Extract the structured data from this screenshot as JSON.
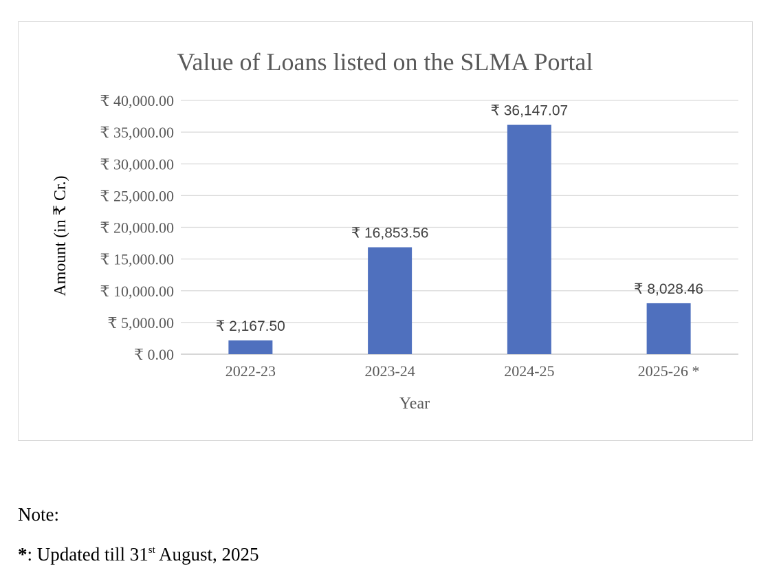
{
  "chart_data": {
    "type": "bar",
    "title": "Value of Loans listed on the SLMA Portal",
    "xlabel": "Year",
    "ylabel": "Amount (in ₹ Cr.)",
    "categories": [
      "2022-23",
      "2023-24",
      "2024-25",
      "2025-26 *"
    ],
    "values": [
      2167.5,
      16853.56,
      36147.07,
      8028.46
    ],
    "data_labels": [
      "₹ 2,167.50",
      "₹ 16,853.56",
      "₹ 36,147.07",
      "₹ 8,028.46"
    ],
    "ylim": [
      0,
      40000
    ],
    "yticks": [
      0,
      5000,
      10000,
      15000,
      20000,
      25000,
      30000,
      35000,
      40000
    ],
    "ytick_labels": [
      "₹ 0.00",
      "₹ 5,000.00",
      "₹ 10,000.00",
      "₹ 15,000.00",
      "₹ 20,000.00",
      "₹ 25,000.00",
      "₹ 30,000.00",
      "₹ 35,000.00",
      "₹ 40,000.00"
    ],
    "grid": true,
    "legend": "none",
    "bar_color": "#4f70be"
  },
  "note": {
    "title": "Note:",
    "star": "*",
    "text_before_sup": ": Updated till 31",
    "sup": "st",
    "text_after_sup": " August, 2025"
  }
}
